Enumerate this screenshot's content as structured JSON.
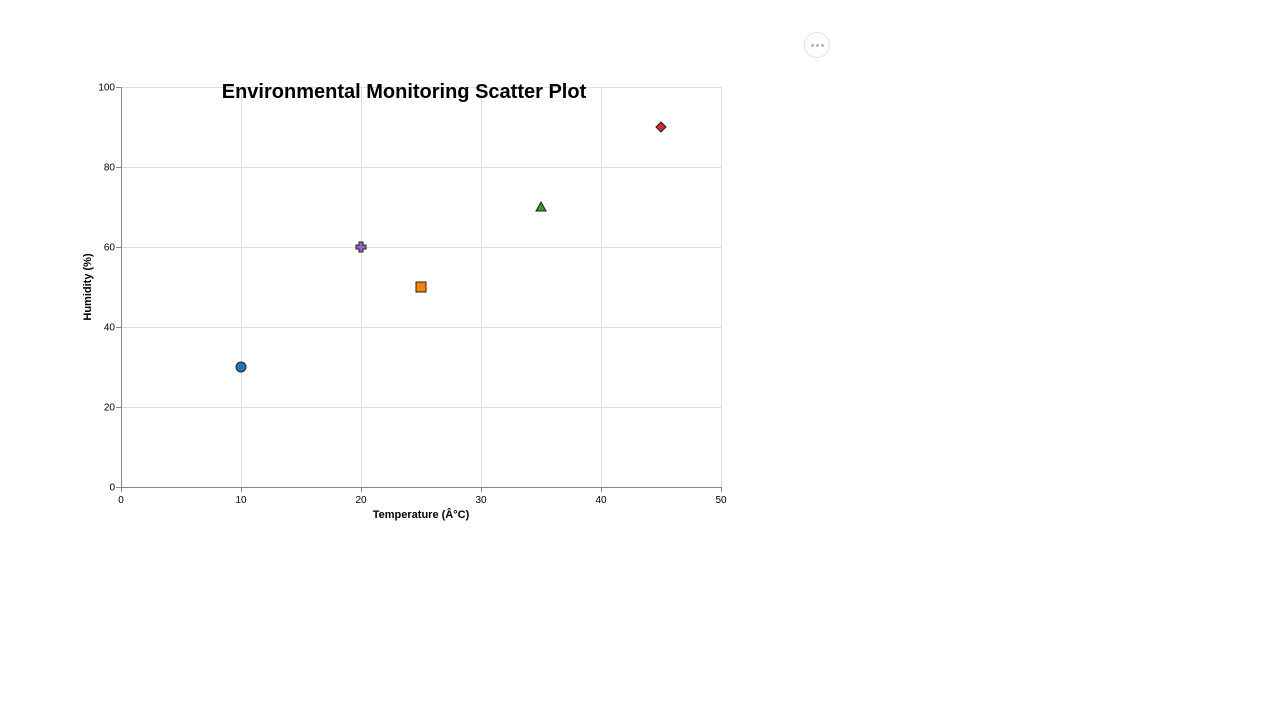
{
  "chart_data": {
    "type": "scatter",
    "title": "Environmental Monitoring Scatter Plot",
    "xlabel": "Temperature (Â°C)",
    "ylabel": "Humidity (%)",
    "xlim": [
      0,
      50
    ],
    "ylim": [
      0,
      100
    ],
    "x_ticks": [
      0,
      10,
      20,
      30,
      40,
      50
    ],
    "y_ticks": [
      0,
      20,
      40,
      60,
      80,
      100
    ],
    "grid": true,
    "points": [
      {
        "x": 10,
        "y": 30,
        "shape": "circle",
        "color": "#1f77b4"
      },
      {
        "x": 20,
        "y": 60,
        "shape": "cross",
        "color": "#9467bd"
      },
      {
        "x": 25,
        "y": 50,
        "shape": "square",
        "color": "#ff7f0e"
      },
      {
        "x": 35,
        "y": 70,
        "shape": "triangle-up",
        "color": "#2ca02c"
      },
      {
        "x": 45,
        "y": 90,
        "shape": "diamond",
        "color": "#d62728"
      }
    ]
  },
  "toolbar": {
    "actions_icon": "more-horizontal-icon"
  }
}
